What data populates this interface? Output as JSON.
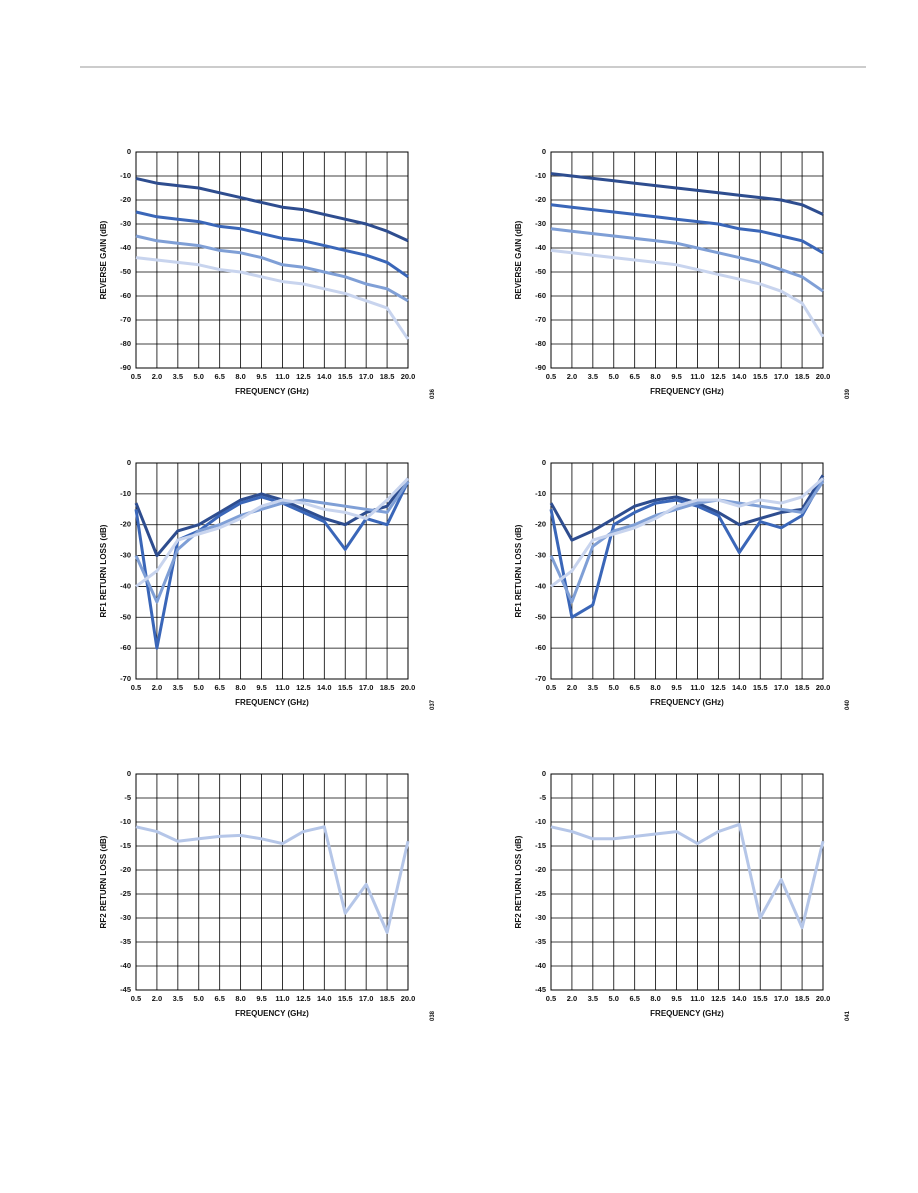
{
  "chart_data": [
    {
      "type": "line",
      "xlabel": "FREQUENCY (GHz)",
      "ylabel": "REVERSE GAIN (dB)",
      "figure_id": "036",
      "x": [
        0.5,
        2,
        3.5,
        5,
        6.5,
        8,
        9.5,
        11,
        12.5,
        14,
        15.5,
        17,
        18.5,
        20
      ],
      "xlim": [
        0.5,
        20
      ],
      "ylim": [
        -90,
        0
      ],
      "grid": true,
      "xticks": [
        0.5,
        {
          "value": 2,
          "label": "2.0"
        },
        3.5,
        {
          "value": 5,
          "label": "5.0"
        },
        6.5,
        {
          "value": 8,
          "label": "8.0"
        },
        9.5,
        {
          "value": 11,
          "label": "11.0"
        },
        12.5,
        {
          "value": 14,
          "label": "14.0"
        },
        15.5,
        {
          "value": 17,
          "label": "17.0"
        },
        18.5,
        {
          "value": 20,
          "label": "20.0"
        }
      ],
      "yticks": [
        0,
        -10,
        -20,
        -30,
        -40,
        -50,
        -60,
        -70,
        -80,
        -90
      ],
      "series": [
        {
          "color": "#2e4d8f",
          "values": [
            -11,
            -13,
            -14,
            -15,
            -17,
            -19,
            -21,
            -23,
            -24,
            -26,
            -28,
            -30,
            -33,
            -37
          ]
        },
        {
          "color": "#3a66b8",
          "values": [
            -25,
            -27,
            -28,
            -29,
            -31,
            -32,
            -34,
            -36,
            -37,
            -39,
            -41,
            -43,
            -46,
            -52
          ]
        },
        {
          "color": "#7f9fd6",
          "values": [
            -35,
            -37,
            -38,
            -39,
            -41,
            -42,
            -44,
            -47,
            -48,
            -50,
            -52,
            -55,
            -57,
            -62
          ]
        },
        {
          "color": "#c8d4ee",
          "values": [
            -44,
            -45,
            -46,
            -47,
            -49,
            -50,
            -52,
            -54,
            -55,
            -57,
            -59,
            -62,
            -65,
            -78
          ]
        }
      ]
    },
    {
      "type": "line",
      "xlabel": "FREQUENCY (GHz)",
      "ylabel": "REVERSE GAIN (dB)",
      "figure_id": "039",
      "x": [
        0.5,
        2,
        3.5,
        5,
        6.5,
        8,
        9.5,
        11,
        12.5,
        14,
        15.5,
        17,
        18.5,
        20
      ],
      "xlim": [
        0.5,
        20
      ],
      "ylim": [
        -90,
        0
      ],
      "grid": true,
      "xticks": [
        0.5,
        {
          "value": 2,
          "label": "2.0"
        },
        3.5,
        {
          "value": 5,
          "label": "5.0"
        },
        6.5,
        {
          "value": 8,
          "label": "8.0"
        },
        9.5,
        {
          "value": 11,
          "label": "11.0"
        },
        12.5,
        {
          "value": 14,
          "label": "14.0"
        },
        15.5,
        {
          "value": 17,
          "label": "17.0"
        },
        18.5,
        {
          "value": 20,
          "label": "20.0"
        }
      ],
      "yticks": [
        0,
        -10,
        -20,
        -30,
        -40,
        -50,
        -60,
        -70,
        -80,
        -90
      ],
      "series": [
        {
          "color": "#2e4d8f",
          "values": [
            -9,
            -10,
            -11,
            -12,
            -13,
            -14,
            -15,
            -16,
            -17,
            -18,
            -19,
            -20,
            -22,
            -26
          ]
        },
        {
          "color": "#3a66b8",
          "values": [
            -22,
            -23,
            -24,
            -25,
            -26,
            -27,
            -28,
            -29,
            -30,
            -32,
            -33,
            -35,
            -37,
            -42
          ]
        },
        {
          "color": "#7f9fd6",
          "values": [
            -32,
            -33,
            -34,
            -35,
            -36,
            -37,
            -38,
            -40,
            -42,
            -44,
            -46,
            -49,
            -52,
            -58
          ]
        },
        {
          "color": "#c8d4ee",
          "values": [
            -41,
            -42,
            -43,
            -44,
            -45,
            -46,
            -47,
            -49,
            -51,
            -53,
            -55,
            -58,
            -63,
            -77
          ]
        }
      ]
    },
    {
      "type": "line",
      "xlabel": "FREQUENCY (GHz)",
      "ylabel": "RF1 RETURN LOSS (dB)",
      "figure_id": "037",
      "x": [
        0.5,
        2,
        3.5,
        5,
        6.5,
        8,
        9.5,
        11,
        12.5,
        14,
        15.5,
        17,
        18.5,
        20
      ],
      "xlim": [
        0.5,
        20
      ],
      "ylim": [
        -70,
        0
      ],
      "grid": true,
      "xticks": [
        0.5,
        {
          "value": 2,
          "label": "2.0"
        },
        3.5,
        {
          "value": 5,
          "label": "5.0"
        },
        6.5,
        {
          "value": 8,
          "label": "8.0"
        },
        9.5,
        {
          "value": 11,
          "label": "11.0"
        },
        12.5,
        {
          "value": 14,
          "label": "14.0"
        },
        15.5,
        {
          "value": 17,
          "label": "17.0"
        },
        18.5,
        {
          "value": 20,
          "label": "20.0"
        }
      ],
      "yticks": [
        0,
        -10,
        -20,
        -30,
        -40,
        -50,
        -60,
        -70
      ],
      "series": [
        {
          "color": "#2e4d8f",
          "values": [
            -13,
            -30,
            -22,
            -20,
            -16,
            -12,
            -10,
            -12,
            -15,
            -18,
            -20,
            -16,
            -14,
            -5
          ]
        },
        {
          "color": "#3a66b8",
          "values": [
            -15,
            -60,
            -25,
            -22,
            -17,
            -13,
            -11,
            -13,
            -16,
            -19,
            -28,
            -18,
            -20,
            -6
          ]
        },
        {
          "color": "#7f9fd6",
          "values": [
            -30,
            -45,
            -28,
            -22,
            -20,
            -17,
            -15,
            -13,
            -12,
            -13,
            -14,
            -15,
            -16,
            -6
          ]
        },
        {
          "color": "#c8d4ee",
          "values": [
            -40,
            -35,
            -25,
            -23,
            -21,
            -18,
            -14,
            -12,
            -13,
            -15,
            -16,
            -18,
            -12,
            -5
          ]
        }
      ]
    },
    {
      "type": "line",
      "xlabel": "FREQUENCY (GHz)",
      "ylabel": "RF1 RETURN LOSS (dB)",
      "figure_id": "040",
      "x": [
        0.5,
        2,
        3.5,
        5,
        6.5,
        8,
        9.5,
        11,
        12.5,
        14,
        15.5,
        17,
        18.5,
        20
      ],
      "xlim": [
        0.5,
        20
      ],
      "ylim": [
        -70,
        0
      ],
      "grid": true,
      "xticks": [
        0.5,
        {
          "value": 2,
          "label": "2.0"
        },
        3.5,
        {
          "value": 5,
          "label": "5.0"
        },
        6.5,
        {
          "value": 8,
          "label": "8.0"
        },
        9.5,
        {
          "value": 11,
          "label": "11.0"
        },
        12.5,
        {
          "value": 14,
          "label": "14.0"
        },
        15.5,
        {
          "value": 17,
          "label": "17.0"
        },
        18.5,
        {
          "value": 20,
          "label": "20.0"
        }
      ],
      "yticks": [
        0,
        -10,
        -20,
        -30,
        -40,
        -50,
        -60,
        -70
      ],
      "series": [
        {
          "color": "#2e4d8f",
          "values": [
            -13,
            -25,
            -22,
            -18,
            -14,
            -12,
            -11,
            -13,
            -16,
            -20,
            -18,
            -16,
            -15,
            -4
          ]
        },
        {
          "color": "#3a66b8",
          "values": [
            -15,
            -50,
            -46,
            -20,
            -16,
            -13,
            -12,
            -14,
            -17,
            -29,
            -19,
            -21,
            -17,
            -5
          ]
        },
        {
          "color": "#7f9fd6",
          "values": [
            -30,
            -45,
            -27,
            -22,
            -20,
            -17,
            -15,
            -13,
            -12,
            -13,
            -14,
            -15,
            -16,
            -6
          ]
        },
        {
          "color": "#c8d4ee",
          "values": [
            -40,
            -35,
            -25,
            -23,
            -21,
            -18,
            -14,
            -12,
            -12,
            -14,
            -12,
            -13,
            -11,
            -5
          ]
        }
      ]
    },
    {
      "type": "line",
      "xlabel": "FREQUENCY (GHz)",
      "ylabel": "RF2 RETURN LOSS (dB)",
      "figure_id": "038",
      "x": [
        0.5,
        2,
        3.5,
        5,
        6.5,
        8,
        9.5,
        11,
        12.5,
        14,
        15.5,
        17,
        18.5,
        20
      ],
      "xlim": [
        0.5,
        20
      ],
      "ylim": [
        -45,
        0
      ],
      "grid": true,
      "xticks": [
        0.5,
        {
          "value": 2,
          "label": "2.0"
        },
        3.5,
        {
          "value": 5,
          "label": "5.0"
        },
        6.5,
        {
          "value": 8,
          "label": "8.0"
        },
        9.5,
        {
          "value": 11,
          "label": "11.0"
        },
        12.5,
        {
          "value": 14,
          "label": "14.0"
        },
        15.5,
        {
          "value": 17,
          "label": "17.0"
        },
        18.5,
        {
          "value": 20,
          "label": "20.0"
        }
      ],
      "yticks": [
        0,
        -5,
        -10,
        -15,
        -20,
        -25,
        -30,
        -35,
        -40,
        -45
      ],
      "series": [
        {
          "color": "#b5c6e8",
          "values": [
            -11,
            -12,
            -14,
            -13.5,
            -13,
            -12.8,
            -13.5,
            -14.5,
            -12,
            -11,
            -29,
            -23,
            -33,
            -14
          ]
        }
      ]
    },
    {
      "type": "line",
      "xlabel": "FREQUENCY (GHz)",
      "ylabel": "RF2 RETURN LOSS (dB)",
      "figure_id": "041",
      "x": [
        0.5,
        2,
        3.5,
        5,
        6.5,
        8,
        9.5,
        11,
        12.5,
        14,
        15.5,
        17,
        18.5,
        20
      ],
      "xlim": [
        0.5,
        20
      ],
      "ylim": [
        -45,
        0
      ],
      "grid": true,
      "xticks": [
        0.5,
        {
          "value": 2,
          "label": "2.0"
        },
        3.5,
        {
          "value": 5,
          "label": "5.0"
        },
        6.5,
        {
          "value": 8,
          "label": "8.0"
        },
        9.5,
        {
          "value": 11,
          "label": "11.0"
        },
        12.5,
        {
          "value": 14,
          "label": "14.0"
        },
        15.5,
        {
          "value": 17,
          "label": "17.0"
        },
        18.5,
        {
          "value": 20,
          "label": "20.0"
        }
      ],
      "yticks": [
        0,
        -5,
        -10,
        -15,
        -20,
        -25,
        -30,
        -35,
        -40,
        -45
      ],
      "series": [
        {
          "color": "#b5c6e8",
          "values": [
            -11,
            -12,
            -13.5,
            -13.5,
            -13,
            -12.5,
            -12,
            -14.5,
            -12,
            -10.5,
            -30,
            -22,
            -32,
            -14
          ]
        }
      ]
    }
  ]
}
